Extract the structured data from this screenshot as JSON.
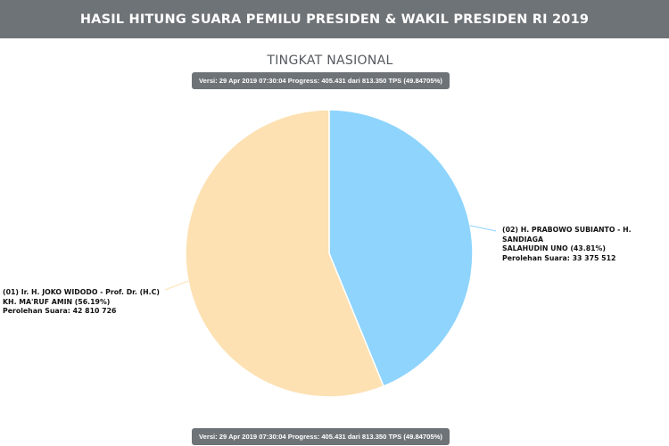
{
  "header": {
    "title": "HASIL HITUNG SUARA PEMILU PRESIDEN & WAKIL PRESIDEN RI 2019"
  },
  "subtitle": "TINGKAT NASIONAL",
  "version": {
    "top": "Versi: 29 Apr 2019 07:30:04 Progress: 405.431 dari 813.350 TPS (49.84705%)",
    "bottom": "Versi: 29 Apr 2019 07:30:04 Progress: 405.431 dari 813.350 TPS (49.84705%)"
  },
  "chart_data": {
    "type": "pie",
    "title": "",
    "series": [
      {
        "line1": "(01) Ir. H. JOKO WIDODO - Prof. Dr. (H.C)",
        "line2": "KH. MA'RUF AMIN (56.19%)",
        "votes_label": "Perolehan Suara: 42 810 726",
        "percent": 56.19,
        "votes": 42810726,
        "color": "#fde1b2"
      },
      {
        "line1": "(02) H. PRABOWO SUBIANTO - H. SANDIAGA",
        "line2": "SALAHUDIN UNO (43.81%)",
        "votes_label": "Perolehan Suara: 33 375 512",
        "percent": 43.81,
        "votes": 33375512,
        "color": "#8ed4fd"
      }
    ]
  }
}
